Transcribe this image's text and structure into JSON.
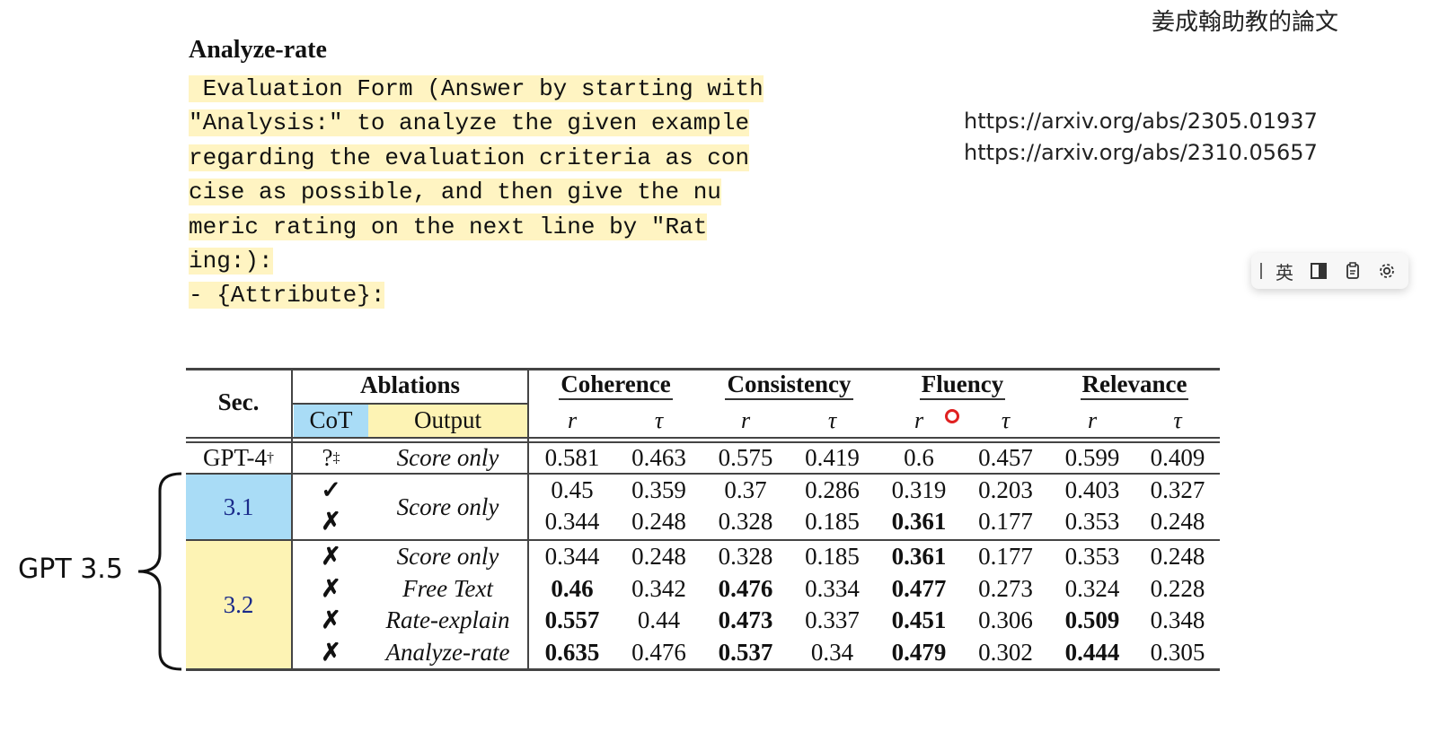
{
  "corner_title": "姜成翰助教的論文",
  "section_heading": "Analyze-rate",
  "prompt_lines": [
    " Evaluation Form (Answer by starting with",
    "\"Analysis:\" to analyze the given example",
    "regarding the evaluation criteria as con",
    "cise as possible, and then give the nu",
    "meric rating on the next line by \"Rat",
    "ing:):",
    "- {Attribute}:"
  ],
  "refs": [
    "https://arxiv.org/abs/2305.01937",
    "https://arxiv.org/abs/2310.05657"
  ],
  "ime_toolbar": {
    "lang": "英",
    "icons": [
      "grip-icon",
      "half-square-icon",
      "clipboard-icon",
      "gear-icon"
    ]
  },
  "table": {
    "sec_header": "Sec.",
    "ablations_header": "Ablations",
    "cot_header": "CoT",
    "output_header": "Output",
    "metrics": [
      "Coherence",
      "Consistency",
      "Fluency",
      "Relevance"
    ],
    "r_symbol": "r",
    "tau_symbol": "τ",
    "gpt4": {
      "sec": "GPT-4",
      "sec_sup": "†",
      "cot": "?",
      "cot_sup": "‡",
      "output": "Score only",
      "values": [
        "0.581",
        "0.463",
        "0.575",
        "0.419",
        "0.6",
        "0.457",
        "0.599",
        "0.409"
      ]
    },
    "sec31_label": "3.1",
    "sec31_output": "Score only",
    "sec31_rows": [
      {
        "cot": "✓",
        "values": [
          "0.45",
          "0.359",
          "0.37",
          "0.286",
          "0.319",
          "0.203",
          "0.403",
          "0.327"
        ],
        "bold": []
      },
      {
        "cot": "✗",
        "values": [
          "0.344",
          "0.248",
          "0.328",
          "0.185",
          "0.361",
          "0.177",
          "0.353",
          "0.248"
        ],
        "bold": [
          4
        ]
      }
    ],
    "sec32_label": "3.2",
    "sec32_rows": [
      {
        "cot": "✗",
        "output": "Score only",
        "values": [
          "0.344",
          "0.248",
          "0.328",
          "0.185",
          "0.361",
          "0.177",
          "0.353",
          "0.248"
        ],
        "bold": [
          4
        ]
      },
      {
        "cot": "✗",
        "output": "Free Text",
        "values": [
          "0.46",
          "0.342",
          "0.476",
          "0.334",
          "0.477",
          "0.273",
          "0.324",
          "0.228"
        ],
        "bold": [
          0,
          2,
          4
        ]
      },
      {
        "cot": "✗",
        "output": "Rate-explain",
        "values": [
          "0.557",
          "0.44",
          "0.473",
          "0.337",
          "0.451",
          "0.306",
          "0.509",
          "0.348"
        ],
        "bold": [
          0,
          2,
          4,
          6
        ]
      },
      {
        "cot": "✗",
        "output": "Analyze-rate",
        "values": [
          "0.635",
          "0.476",
          "0.537",
          "0.34",
          "0.479",
          "0.302",
          "0.444",
          "0.305"
        ],
        "bold": [
          0,
          2,
          4,
          6
        ]
      }
    ]
  },
  "gpt35_label": "GPT 3.5",
  "colors": {
    "cot_blue": "#a9dcf6",
    "highlight_yellow": "#fdf3b4",
    "prompt_yellow": "#fff4c2",
    "pointer_red": "#e02020"
  }
}
